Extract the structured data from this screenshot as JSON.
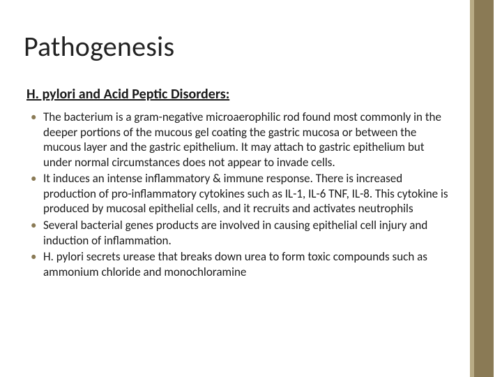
{
  "slide": {
    "title": "Pathogenesis",
    "subtitle": "H. pylori and Acid Peptic Disorders:",
    "bullets": [
      "The bacterium is a gram-negative microaerophilic rod found most commonly in the deeper portions of the mucous gel coating the gastric mucosa or between the mucous layer and the gastric epithelium. It may attach to gastric epithelium but under normal circumstances does not appear to invade cells.",
      "It induces an intense inflammatory & immune response. There is increased production of pro-inflammatory cytokines such as IL-1, IL-6 TNF, IL-8. This cytokine is produced by mucosal epithelial cells, and it recruits and activates neutrophils",
      "Several bacterial genes products are involved in causing epithelial cell injury and induction of inflammation.",
      "H. pylori secrets urease that breaks down urea to form toxic compounds such as ammonium chloride and monochloramine"
    ]
  },
  "theme": {
    "accent_color": "#8a7a55",
    "accent_light": "#b8ab85",
    "background": "#ffffff",
    "text_color": "#1a1a1a",
    "title_fontsize": 40,
    "subtitle_fontsize": 20,
    "body_fontsize": 17
  }
}
